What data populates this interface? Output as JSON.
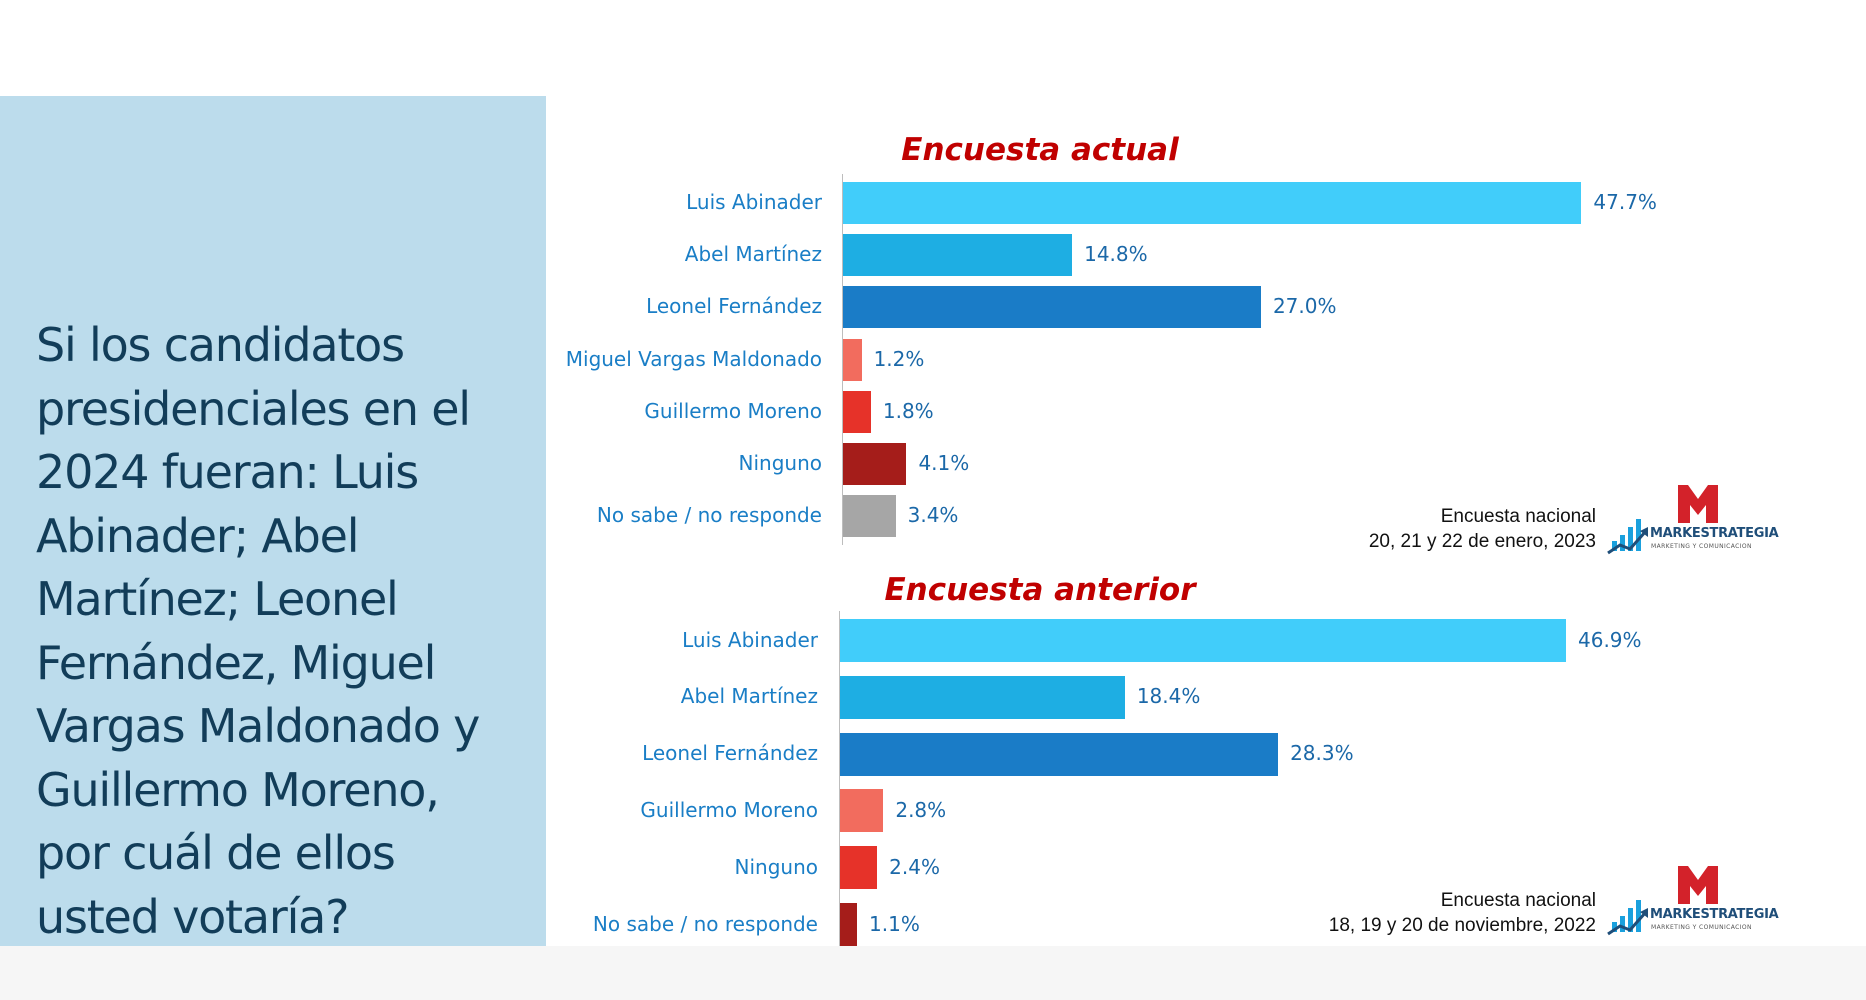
{
  "question": "Si los candidatos presidenciales en el 2024 fueran: Luis Abinader; Abel Martínez; Leonel Fernández, Miguel Vargas Maldonado y Guillermo Moreno, por cuál de ellos usted votaría?",
  "chart_data": [
    {
      "type": "bar",
      "orientation": "horizontal",
      "title": "Encuesta actual",
      "categories": [
        "Luis Abinader",
        "Abel Martínez",
        "Leonel Fernández",
        "Miguel Vargas Maldonado",
        "Guillermo Moreno",
        "Ninguno",
        "No sabe / no responde"
      ],
      "values": [
        47.7,
        14.8,
        27.0,
        1.2,
        1.8,
        4.1,
        3.4
      ],
      "value_labels": [
        "47.7%",
        "14.8%",
        "27.0%",
        "1.2%",
        "1.8%",
        "4.1%",
        "3.4%"
      ],
      "colors": [
        "#41cdfa",
        "#1eaee3",
        "#1a7cc7",
        "#f26c5e",
        "#e63229",
        "#a51d1a",
        "#a6a6a6"
      ],
      "note_line1": "Encuesta nacional",
      "note_line2": "20, 21 y 22 de enero, 2023",
      "xlim": [
        0,
        50
      ]
    },
    {
      "type": "bar",
      "orientation": "horizontal",
      "title": "Encuesta anterior",
      "categories": [
        "Luis Abinader",
        "Abel Martínez",
        "Leonel Fernández",
        "Guillermo Moreno",
        "Ninguno",
        "No sabe / no responde"
      ],
      "values": [
        46.9,
        18.4,
        28.3,
        2.8,
        2.4,
        1.1
      ],
      "value_labels": [
        "46.9%",
        "18.4%",
        "28.3%",
        "2.8%",
        "2.4%",
        "1.1%"
      ],
      "colors": [
        "#41cdfa",
        "#1eaee3",
        "#1a7cc7",
        "#f26c5e",
        "#e63229",
        "#a51d1a"
      ],
      "note_line1": "Encuesta nacional",
      "note_line2": "18, 19 y 20 de noviembre, 2022",
      "xlim": [
        0,
        50
      ]
    }
  ],
  "logo": {
    "name": "MARKESTRATEGIA",
    "tagline": "MARKETING Y COMUNICACION",
    "colors": {
      "m_mark": "#d3222a",
      "bars": "#1aa0dd",
      "arrow": "#1f4e79"
    }
  }
}
